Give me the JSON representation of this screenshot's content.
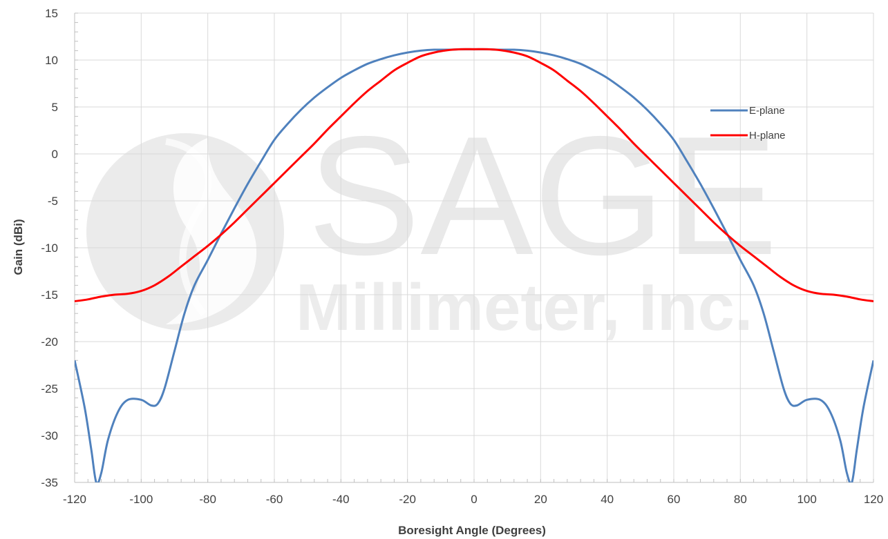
{
  "chart_data": {
    "type": "line",
    "title": "",
    "xlabel": "Boresight Angle (Degrees)",
    "ylabel": "Gain (dBi)",
    "xlim": [
      -120,
      120
    ],
    "ylim": [
      -35,
      15
    ],
    "xticks": [
      -120,
      -100,
      -80,
      -60,
      -40,
      -20,
      0,
      20,
      40,
      60,
      80,
      100,
      120
    ],
    "yticks": [
      15,
      10,
      5,
      0,
      -5,
      -10,
      -15,
      -20,
      -25,
      -30,
      -35
    ],
    "grid": true,
    "legend_position": "right",
    "series": [
      {
        "name": "E-plane",
        "color": "#4f81bd",
        "x": [
          -120,
          -117,
          -115,
          -113.5,
          -112,
          -110,
          -107,
          -104,
          -100,
          -97,
          -95,
          -93,
          -90,
          -87,
          -84,
          -80,
          -76,
          -72,
          -68,
          -64,
          -60,
          -56,
          -52,
          -48,
          -44,
          -40,
          -36,
          -32,
          -28,
          -24,
          -20,
          -16,
          -12,
          -8,
          -4,
          0,
          4,
          8,
          12,
          16,
          20,
          24,
          28,
          32,
          36,
          40,
          44,
          48,
          52,
          56,
          60,
          64,
          68,
          72,
          76,
          80,
          84,
          87,
          90,
          93,
          95,
          97,
          100,
          104,
          107,
          110,
          112,
          113.5,
          115,
          117,
          120
        ],
        "y": [
          -22,
          -27,
          -31.5,
          -35,
          -34,
          -30.5,
          -27.5,
          -26.2,
          -26.2,
          -26.8,
          -26.6,
          -25,
          -21,
          -17,
          -14,
          -11.3,
          -8.5,
          -5.8,
          -3.2,
          -0.8,
          1.5,
          3.2,
          4.7,
          6,
          7.1,
          8.1,
          8.9,
          9.6,
          10.1,
          10.5,
          10.8,
          11,
          11.1,
          11.1,
          11.15,
          11.15,
          11.15,
          11.1,
          11.1,
          11,
          10.8,
          10.5,
          10.1,
          9.6,
          8.9,
          8.1,
          7.1,
          6,
          4.7,
          3.2,
          1.5,
          -0.8,
          -3.2,
          -5.8,
          -8.5,
          -11.3,
          -14,
          -17,
          -21,
          -25,
          -26.6,
          -26.8,
          -26.2,
          -26.2,
          -27.5,
          -30.5,
          -34,
          -35,
          -31.5,
          -27,
          -22
        ]
      },
      {
        "name": "H-plane",
        "color": "#ff0000",
        "x": [
          -120,
          -116,
          -112,
          -108,
          -104,
          -100,
          -96,
          -92,
          -88,
          -84,
          -80,
          -76,
          -72,
          -68,
          -64,
          -60,
          -56,
          -52,
          -48,
          -44,
          -40,
          -36,
          -32,
          -28,
          -24,
          -20,
          -16,
          -12,
          -8,
          -4,
          0,
          4,
          8,
          12,
          16,
          20,
          24,
          28,
          32,
          36,
          40,
          44,
          48,
          52,
          56,
          60,
          64,
          68,
          72,
          76,
          80,
          84,
          88,
          92,
          96,
          100,
          104,
          108,
          112,
          116,
          120
        ],
        "y": [
          -15.7,
          -15.5,
          -15.2,
          -15,
          -14.9,
          -14.6,
          -14,
          -13.1,
          -12,
          -10.9,
          -9.8,
          -8.6,
          -7.3,
          -5.9,
          -4.5,
          -3.1,
          -1.7,
          -0.3,
          1.1,
          2.6,
          4,
          5.4,
          6.7,
          7.8,
          8.9,
          9.7,
          10.4,
          10.8,
          11.05,
          11.15,
          11.15,
          11.15,
          11.05,
          10.8,
          10.4,
          9.7,
          8.9,
          7.8,
          6.7,
          5.4,
          4,
          2.6,
          1.1,
          -0.3,
          -1.7,
          -3.1,
          -4.5,
          -5.9,
          -7.3,
          -8.6,
          -9.8,
          -10.9,
          -12,
          -13.1,
          -14,
          -14.6,
          -14.9,
          -15,
          -15.2,
          -15.5,
          -15.7
        ]
      }
    ]
  },
  "watermark": {
    "big": "SAGE",
    "small": "Millimeter, Inc.",
    "color": "#e8e8e8"
  }
}
